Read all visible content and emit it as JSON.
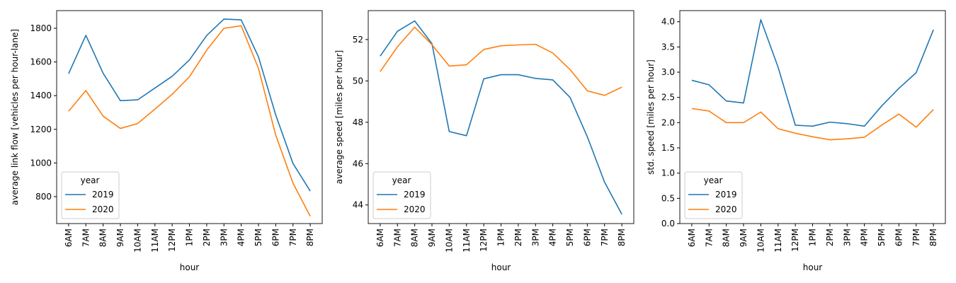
{
  "chart_data": [
    {
      "type": "line",
      "xlabel": "hour",
      "ylabel": "average link flow [vehicles per hour-lane]",
      "categories": [
        "6AM",
        "7AM",
        "8AM",
        "9AM",
        "10AM",
        "11AM",
        "12PM",
        "1PM",
        "2PM",
        "3PM",
        "4PM",
        "5PM",
        "6PM",
        "7PM",
        "8PM"
      ],
      "yticks": [
        800,
        1000,
        1200,
        1400,
        1600,
        1800
      ],
      "ylim": [
        640,
        1905
      ],
      "legend": {
        "title": "year",
        "position": "lower-left"
      },
      "series": [
        {
          "name": "2019",
          "color": "#1f77b4",
          "values": [
            1530,
            1758,
            1533,
            1370,
            1375,
            1445,
            1515,
            1612,
            1757,
            1855,
            1850,
            1630,
            1285,
            997,
            833
          ]
        },
        {
          "name": "2020",
          "color": "#ff7f0e",
          "values": [
            1307,
            1430,
            1278,
            1205,
            1234,
            1320,
            1408,
            1512,
            1670,
            1800,
            1815,
            1562,
            1165,
            880,
            683
          ]
        }
      ]
    },
    {
      "type": "line",
      "xlabel": "hour",
      "ylabel": "average speed [miles per hour]",
      "categories": [
        "6AM",
        "7AM",
        "8AM",
        "9AM",
        "10AM",
        "11AM",
        "12PM",
        "1PM",
        "2PM",
        "3PM",
        "4PM",
        "5PM",
        "6PM",
        "7PM",
        "8PM"
      ],
      "yticks": [
        44,
        46,
        48,
        50,
        52
      ],
      "ylim": [
        43.1,
        53.4
      ],
      "legend": {
        "title": "year",
        "position": "lower-left"
      },
      "series": [
        {
          "name": "2019",
          "color": "#1f77b4",
          "values": [
            51.2,
            52.4,
            52.9,
            51.8,
            47.55,
            47.35,
            50.1,
            50.3,
            50.3,
            50.12,
            50.05,
            49.2,
            47.3,
            45.1,
            43.55
          ]
        },
        {
          "name": "2020",
          "color": "#ff7f0e",
          "values": [
            50.45,
            51.65,
            52.6,
            51.75,
            50.72,
            50.78,
            51.52,
            51.7,
            51.74,
            51.77,
            51.35,
            50.55,
            49.52,
            49.3,
            49.7
          ]
        }
      ]
    },
    {
      "type": "line",
      "xlabel": "hour",
      "ylabel": "std. speed [miles per hour]",
      "categories": [
        "6AM",
        "7AM",
        "8AM",
        "9AM",
        "10AM",
        "11AM",
        "12PM",
        "1PM",
        "2PM",
        "3PM",
        "4PM",
        "5PM",
        "6PM",
        "7PM",
        "8PM"
      ],
      "yticks": [
        0.0,
        0.5,
        1.0,
        1.5,
        2.0,
        2.5,
        3.0,
        3.5,
        4.0
      ],
      "ytick_labels": [
        "0.0",
        "0.5",
        "1.0",
        "1.5",
        "2.0",
        "2.5",
        "3.0",
        "3.5",
        "4.0"
      ],
      "ylim": [
        0,
        4.22
      ],
      "legend": {
        "title": "year",
        "position": "lower-left"
      },
      "series": [
        {
          "name": "2019",
          "color": "#1f77b4",
          "values": [
            2.84,
            2.75,
            2.43,
            2.39,
            4.04,
            3.1,
            1.95,
            1.93,
            2.01,
            1.98,
            1.93,
            2.33,
            2.68,
            2.99,
            3.84
          ]
        },
        {
          "name": "2020",
          "color": "#ff7f0e",
          "values": [
            2.28,
            2.23,
            2.0,
            2.0,
            2.21,
            1.88,
            1.79,
            1.72,
            1.66,
            1.68,
            1.71,
            1.95,
            2.17,
            1.91,
            2.26
          ]
        }
      ]
    }
  ]
}
